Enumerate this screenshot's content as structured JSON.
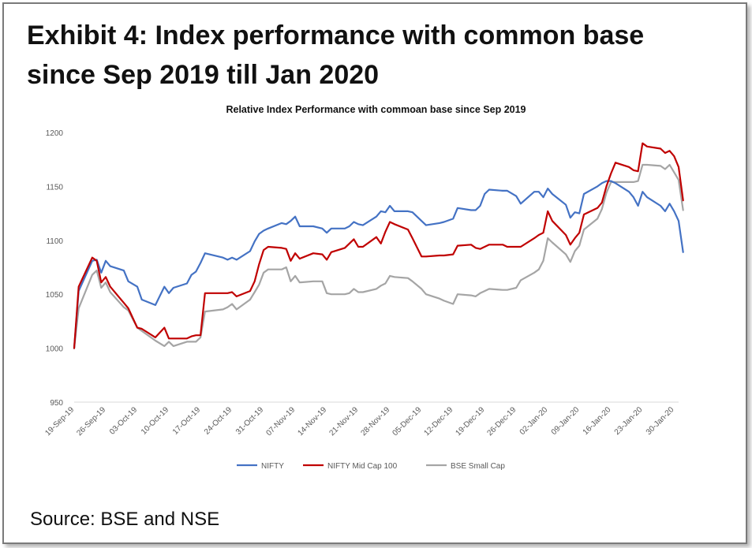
{
  "heading": {
    "line1": "Exhibit 4: Index performance with common base",
    "line2": "since Sep 2019 till Jan 2020"
  },
  "source": "Source: BSE and NSE",
  "chart_data": {
    "type": "line",
    "title": "Relative Index Performance with commoan base since Sep 2019",
    "xlabel": "",
    "ylabel": "",
    "ylim": [
      950,
      1200
    ],
    "yticks": [
      950,
      1000,
      1050,
      1100,
      1150,
      1200
    ],
    "grid": false,
    "legend_position": "bottom",
    "x_tick_labels": [
      "19-Sep-19",
      "26-Sep-19",
      "03-Oct-19",
      "10-Oct-19",
      "17-Oct-19",
      "24-Oct-19",
      "31-Oct-19",
      "07-Nov-19",
      "14-Nov-19",
      "21-Nov-19",
      "28-Nov-19",
      "05-Dec-19",
      "12-Dec-19",
      "19-Dec-19",
      "26-Dec-19",
      "02-Jan-20",
      "09-Jan-20",
      "16-Jan-20",
      "23-Jan-20",
      "30-Jan-20"
    ],
    "x_start": "19-Sep-19",
    "x_end": "31-Jan-20",
    "series": [
      {
        "name": "NIFTY",
        "color": "#4472c4",
        "points": [
          [
            "19-Sep-19",
            1000
          ],
          [
            "20-Sep-19",
            1053
          ],
          [
            "23-Sep-19",
            1081
          ],
          [
            "24-Sep-19",
            1082
          ],
          [
            "25-Sep-19",
            1070
          ],
          [
            "26-Sep-19",
            1081
          ],
          [
            "27-Sep-19",
            1076
          ],
          [
            "30-Sep-19",
            1072
          ],
          [
            "01-Oct-19",
            1062
          ],
          [
            "03-Oct-19",
            1057
          ],
          [
            "04-Oct-19",
            1045
          ],
          [
            "07-Oct-19",
            1040
          ],
          [
            "09-Oct-19",
            1057
          ],
          [
            "10-Oct-19",
            1051
          ],
          [
            "11-Oct-19",
            1056
          ],
          [
            "14-Oct-19",
            1060
          ],
          [
            "15-Oct-19",
            1068
          ],
          [
            "16-Oct-19",
            1071
          ],
          [
            "17-Oct-19",
            1079
          ],
          [
            "18-Oct-19",
            1088
          ],
          [
            "22-Oct-19",
            1084
          ],
          [
            "23-Oct-19",
            1082
          ],
          [
            "24-Oct-19",
            1084
          ],
          [
            "25-Oct-19",
            1082
          ],
          [
            "28-Oct-19",
            1090
          ],
          [
            "29-Oct-19",
            1099
          ],
          [
            "30-Oct-19",
            1106
          ],
          [
            "31-Oct-19",
            1109
          ],
          [
            "01-Nov-19",
            1111
          ],
          [
            "04-Nov-19",
            1116
          ],
          [
            "05-Nov-19",
            1115
          ],
          [
            "06-Nov-19",
            1118
          ],
          [
            "07-Nov-19",
            1122
          ],
          [
            "08-Nov-19",
            1113
          ],
          [
            "11-Nov-19",
            1113
          ],
          [
            "13-Nov-19",
            1111
          ],
          [
            "14-Nov-19",
            1107
          ],
          [
            "15-Nov-19",
            1111
          ],
          [
            "18-Nov-19",
            1111
          ],
          [
            "19-Nov-19",
            1113
          ],
          [
            "20-Nov-19",
            1117
          ],
          [
            "21-Nov-19",
            1115
          ],
          [
            "22-Nov-19",
            1114
          ],
          [
            "25-Nov-19",
            1122
          ],
          [
            "26-Nov-19",
            1127
          ],
          [
            "27-Nov-19",
            1126
          ],
          [
            "28-Nov-19",
            1132
          ],
          [
            "29-Nov-19",
            1127
          ],
          [
            "02-Dec-19",
            1127
          ],
          [
            "03-Dec-19",
            1126
          ],
          [
            "05-Dec-19",
            1118
          ],
          [
            "06-Dec-19",
            1114
          ],
          [
            "09-Dec-19",
            1116
          ],
          [
            "10-Dec-19",
            1117
          ],
          [
            "12-Dec-19",
            1120
          ],
          [
            "13-Dec-19",
            1130
          ],
          [
            "16-Dec-19",
            1128
          ],
          [
            "17-Dec-19",
            1128
          ],
          [
            "18-Dec-19",
            1132
          ],
          [
            "19-Dec-19",
            1143
          ],
          [
            "20-Dec-19",
            1147
          ],
          [
            "23-Dec-19",
            1146
          ],
          [
            "24-Dec-19",
            1146
          ],
          [
            "26-Dec-19",
            1141
          ],
          [
            "27-Dec-19",
            1134
          ],
          [
            "30-Dec-19",
            1145
          ],
          [
            "31-Dec-19",
            1145
          ],
          [
            "01-Jan-20",
            1140
          ],
          [
            "02-Jan-20",
            1148
          ],
          [
            "03-Jan-20",
            1143
          ],
          [
            "06-Jan-20",
            1133
          ],
          [
            "07-Jan-20",
            1121
          ],
          [
            "08-Jan-20",
            1126
          ],
          [
            "09-Jan-20",
            1125
          ],
          [
            "10-Jan-20",
            1143
          ],
          [
            "13-Jan-20",
            1150
          ],
          [
            "14-Jan-20",
            1153
          ],
          [
            "15-Jan-20",
            1155
          ],
          [
            "16-Jan-20",
            1155
          ],
          [
            "17-Jan-20",
            1153
          ],
          [
            "20-Jan-20",
            1145
          ],
          [
            "21-Jan-20",
            1140
          ],
          [
            "22-Jan-20",
            1132
          ],
          [
            "23-Jan-20",
            1145
          ],
          [
            "24-Jan-20",
            1140
          ],
          [
            "27-Jan-20",
            1132
          ],
          [
            "28-Jan-20",
            1127
          ],
          [
            "29-Jan-20",
            1134
          ],
          [
            "30-Jan-20",
            1127
          ],
          [
            "31-Jan-20",
            1118
          ],
          [
            "01-Feb-20",
            1089
          ]
        ]
      },
      {
        "name": "NIFTY Mid Cap 100",
        "color": "#c00000",
        "points": [
          [
            "19-Sep-19",
            1000
          ],
          [
            "20-Sep-19",
            1057
          ],
          [
            "23-Sep-19",
            1084
          ],
          [
            "24-Sep-19",
            1081
          ],
          [
            "25-Sep-19",
            1061
          ],
          [
            "26-Sep-19",
            1066
          ],
          [
            "27-Sep-19",
            1057
          ],
          [
            "30-Sep-19",
            1042
          ],
          [
            "01-Oct-19",
            1037
          ],
          [
            "03-Oct-19",
            1019
          ],
          [
            "04-Oct-19",
            1018
          ],
          [
            "07-Oct-19",
            1010
          ],
          [
            "09-Oct-19",
            1019
          ],
          [
            "10-Oct-19",
            1009
          ],
          [
            "11-Oct-19",
            1009
          ],
          [
            "14-Oct-19",
            1009
          ],
          [
            "15-Oct-19",
            1011
          ],
          [
            "16-Oct-19",
            1012
          ],
          [
            "17-Oct-19",
            1012
          ],
          [
            "18-Oct-19",
            1051
          ],
          [
            "22-Oct-19",
            1051
          ],
          [
            "23-Oct-19",
            1051
          ],
          [
            "24-Oct-19",
            1052
          ],
          [
            "25-Oct-19",
            1048
          ],
          [
            "28-Oct-19",
            1053
          ],
          [
            "29-Oct-19",
            1062
          ],
          [
            "30-Oct-19",
            1078
          ],
          [
            "31-Oct-19",
            1091
          ],
          [
            "01-Nov-19",
            1094
          ],
          [
            "04-Nov-19",
            1093
          ],
          [
            "05-Nov-19",
            1092
          ],
          [
            "06-Nov-19",
            1081
          ],
          [
            "07-Nov-19",
            1088
          ],
          [
            "08-Nov-19",
            1083
          ],
          [
            "11-Nov-19",
            1088
          ],
          [
            "13-Nov-19",
            1087
          ],
          [
            "14-Nov-19",
            1082
          ],
          [
            "15-Nov-19",
            1089
          ],
          [
            "18-Nov-19",
            1093
          ],
          [
            "19-Nov-19",
            1097
          ],
          [
            "20-Nov-19",
            1101
          ],
          [
            "21-Nov-19",
            1094
          ],
          [
            "22-Nov-19",
            1094
          ],
          [
            "25-Nov-19",
            1103
          ],
          [
            "26-Nov-19",
            1097
          ],
          [
            "27-Nov-19",
            1108
          ],
          [
            "28-Nov-19",
            1117
          ],
          [
            "29-Nov-19",
            1115
          ],
          [
            "02-Dec-19",
            1110
          ],
          [
            "03-Dec-19",
            1102
          ],
          [
            "05-Dec-19",
            1085
          ],
          [
            "06-Dec-19",
            1085
          ],
          [
            "09-Dec-19",
            1086
          ],
          [
            "10-Dec-19",
            1086
          ],
          [
            "12-Dec-19",
            1087
          ],
          [
            "13-Dec-19",
            1095
          ],
          [
            "16-Dec-19",
            1096
          ],
          [
            "17-Dec-19",
            1093
          ],
          [
            "18-Dec-19",
            1092
          ],
          [
            "19-Dec-19",
            1094
          ],
          [
            "20-Dec-19",
            1096
          ],
          [
            "23-Dec-19",
            1096
          ],
          [
            "24-Dec-19",
            1094
          ],
          [
            "26-Dec-19",
            1094
          ],
          [
            "27-Dec-19",
            1094
          ],
          [
            "30-Dec-19",
            1102
          ],
          [
            "31-Dec-19",
            1105
          ],
          [
            "01-Jan-20",
            1107
          ],
          [
            "02-Jan-20",
            1127
          ],
          [
            "03-Jan-20",
            1118
          ],
          [
            "06-Jan-20",
            1105
          ],
          [
            "07-Jan-20",
            1096
          ],
          [
            "08-Jan-20",
            1102
          ],
          [
            "09-Jan-20",
            1107
          ],
          [
            "10-Jan-20",
            1124
          ],
          [
            "13-Jan-20",
            1130
          ],
          [
            "14-Jan-20",
            1135
          ],
          [
            "15-Jan-20",
            1150
          ],
          [
            "16-Jan-20",
            1162
          ],
          [
            "17-Jan-20",
            1172
          ],
          [
            "20-Jan-20",
            1168
          ],
          [
            "21-Jan-20",
            1165
          ],
          [
            "22-Jan-20",
            1164
          ],
          [
            "23-Jan-20",
            1190
          ],
          [
            "24-Jan-20",
            1187
          ],
          [
            "27-Jan-20",
            1185
          ],
          [
            "28-Jan-20",
            1181
          ],
          [
            "29-Jan-20",
            1183
          ],
          [
            "30-Jan-20",
            1178
          ],
          [
            "31-Jan-20",
            1168
          ],
          [
            "01-Feb-20",
            1137
          ]
        ]
      },
      {
        "name": "BSE Small Cap",
        "color": "#a5a5a5",
        "points": [
          [
            "19-Sep-19",
            1000
          ],
          [
            "20-Sep-19",
            1037
          ],
          [
            "23-Sep-19",
            1068
          ],
          [
            "24-Sep-19",
            1072
          ],
          [
            "25-Sep-19",
            1056
          ],
          [
            "26-Sep-19",
            1061
          ],
          [
            "27-Sep-19",
            1052
          ],
          [
            "30-Sep-19",
            1038
          ],
          [
            "01-Oct-19",
            1035
          ],
          [
            "03-Oct-19",
            1019
          ],
          [
            "04-Oct-19",
            1016
          ],
          [
            "07-Oct-19",
            1007
          ],
          [
            "09-Oct-19",
            1002
          ],
          [
            "10-Oct-19",
            1006
          ],
          [
            "11-Oct-19",
            1002
          ],
          [
            "14-Oct-19",
            1006
          ],
          [
            "15-Oct-19",
            1006
          ],
          [
            "16-Oct-19",
            1006
          ],
          [
            "17-Oct-19",
            1010
          ],
          [
            "18-Oct-19",
            1034
          ],
          [
            "22-Oct-19",
            1036
          ],
          [
            "23-Oct-19",
            1038
          ],
          [
            "24-Oct-19",
            1041
          ],
          [
            "25-Oct-19",
            1036
          ],
          [
            "28-Oct-19",
            1045
          ],
          [
            "29-Oct-19",
            1052
          ],
          [
            "30-Oct-19",
            1059
          ],
          [
            "31-Oct-19",
            1070
          ],
          [
            "01-Nov-19",
            1073
          ],
          [
            "04-Nov-19",
            1073
          ],
          [
            "05-Nov-19",
            1075
          ],
          [
            "06-Nov-19",
            1062
          ],
          [
            "07-Nov-19",
            1067
          ],
          [
            "08-Nov-19",
            1061
          ],
          [
            "11-Nov-19",
            1062
          ],
          [
            "13-Nov-19",
            1062
          ],
          [
            "14-Nov-19",
            1051
          ],
          [
            "15-Nov-19",
            1050
          ],
          [
            "18-Nov-19",
            1050
          ],
          [
            "19-Nov-19",
            1051
          ],
          [
            "20-Nov-19",
            1055
          ],
          [
            "21-Nov-19",
            1052
          ],
          [
            "22-Nov-19",
            1052
          ],
          [
            "25-Nov-19",
            1055
          ],
          [
            "26-Nov-19",
            1058
          ],
          [
            "27-Nov-19",
            1060
          ],
          [
            "28-Nov-19",
            1067
          ],
          [
            "29-Nov-19",
            1066
          ],
          [
            "02-Dec-19",
            1065
          ],
          [
            "03-Dec-19",
            1062
          ],
          [
            "05-Dec-19",
            1055
          ],
          [
            "06-Dec-19",
            1050
          ],
          [
            "09-Dec-19",
            1046
          ],
          [
            "10-Dec-19",
            1044
          ],
          [
            "12-Dec-19",
            1041
          ],
          [
            "13-Dec-19",
            1050
          ],
          [
            "16-Dec-19",
            1049
          ],
          [
            "17-Dec-19",
            1048
          ],
          [
            "18-Dec-19",
            1051
          ],
          [
            "19-Dec-19",
            1053
          ],
          [
            "20-Dec-19",
            1055
          ],
          [
            "23-Dec-19",
            1054
          ],
          [
            "24-Dec-19",
            1054
          ],
          [
            "26-Dec-19",
            1056
          ],
          [
            "27-Dec-19",
            1063
          ],
          [
            "30-Dec-19",
            1070
          ],
          [
            "31-Dec-19",
            1073
          ],
          [
            "01-Jan-20",
            1081
          ],
          [
            "02-Jan-20",
            1102
          ],
          [
            "03-Jan-20",
            1098
          ],
          [
            "06-Jan-20",
            1087
          ],
          [
            "07-Jan-20",
            1080
          ],
          [
            "08-Jan-20",
            1090
          ],
          [
            "09-Jan-20",
            1095
          ],
          [
            "10-Jan-20",
            1110
          ],
          [
            "13-Jan-20",
            1120
          ],
          [
            "14-Jan-20",
            1129
          ],
          [
            "15-Jan-20",
            1144
          ],
          [
            "16-Jan-20",
            1154
          ],
          [
            "17-Jan-20",
            1154
          ],
          [
            "20-Jan-20",
            1154
          ],
          [
            "21-Jan-20",
            1154
          ],
          [
            "22-Jan-20",
            1155
          ],
          [
            "23-Jan-20",
            1170
          ],
          [
            "24-Jan-20",
            1170
          ],
          [
            "27-Jan-20",
            1169
          ],
          [
            "28-Jan-20",
            1166
          ],
          [
            "29-Jan-20",
            1170
          ],
          [
            "30-Jan-20",
            1163
          ],
          [
            "31-Jan-20",
            1156
          ],
          [
            "01-Feb-20",
            1128
          ]
        ]
      }
    ]
  }
}
